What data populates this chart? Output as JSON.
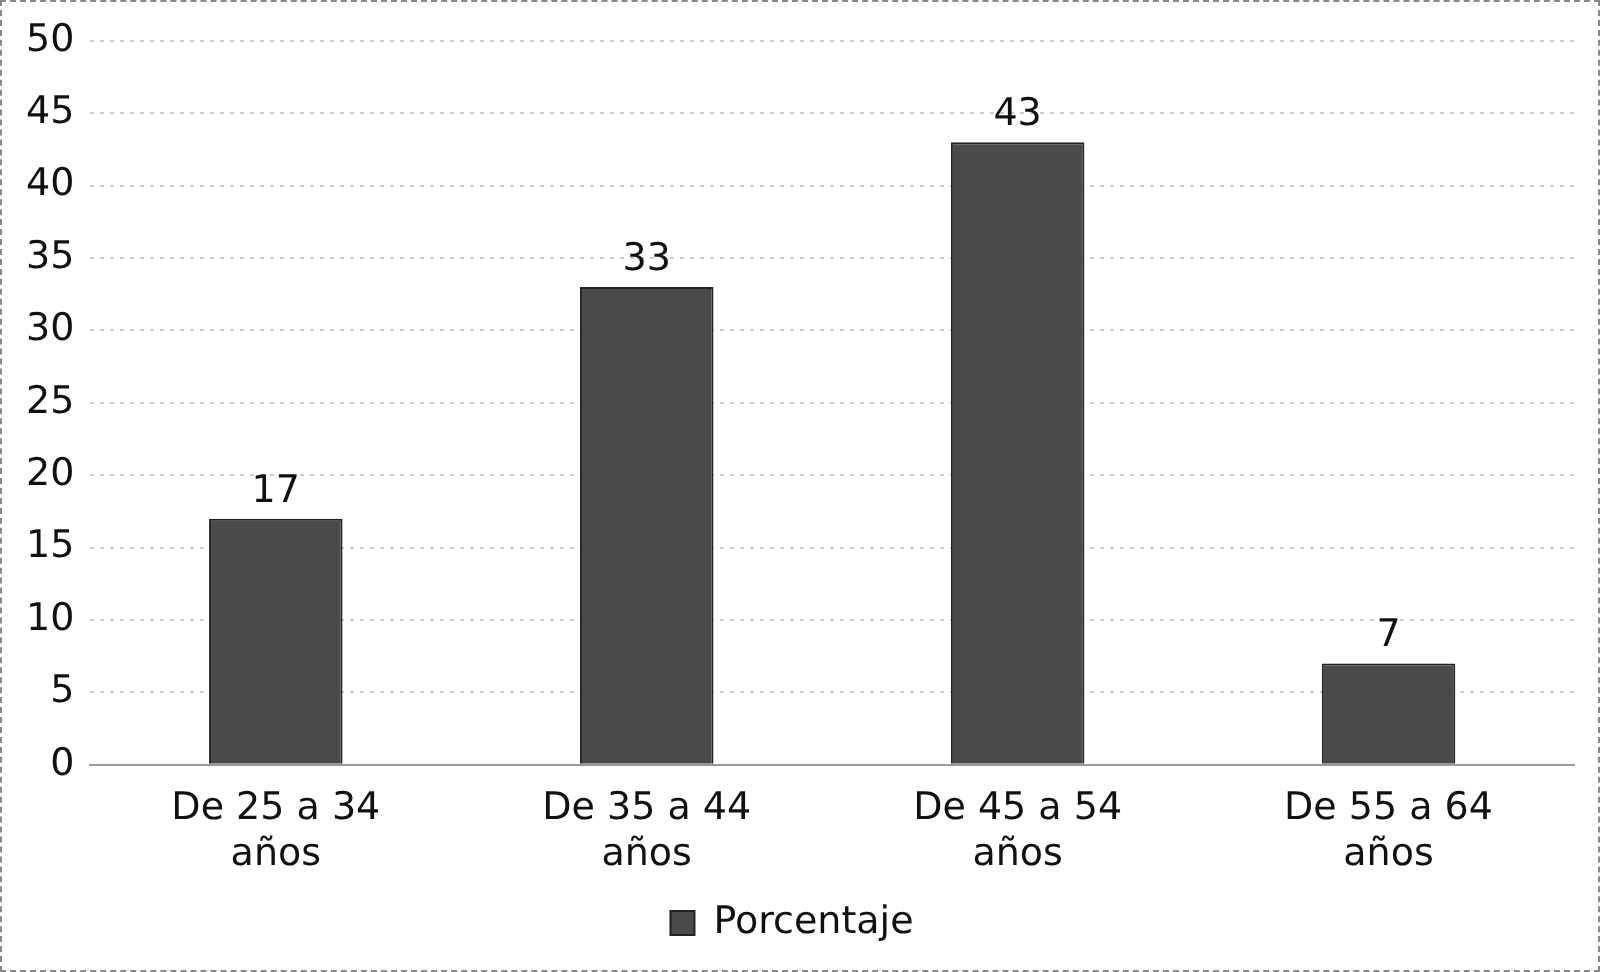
{
  "chart_data": {
    "type": "bar",
    "categories": [
      "De 25 a 34 años",
      "De 35 a 44 años",
      "De 45 a 54 años",
      "De 55 a 64 años"
    ],
    "series": [
      {
        "name": "Porcentaje",
        "color": "#4a4a4a",
        "values": [
          17,
          33,
          43,
          7
        ]
      }
    ],
    "ylim": [
      0,
      50
    ],
    "yticks": [
      0,
      5,
      10,
      15,
      20,
      25,
      30,
      35,
      40,
      45,
      50
    ],
    "grid": "y",
    "legend": "bottom",
    "data_labels": true
  }
}
